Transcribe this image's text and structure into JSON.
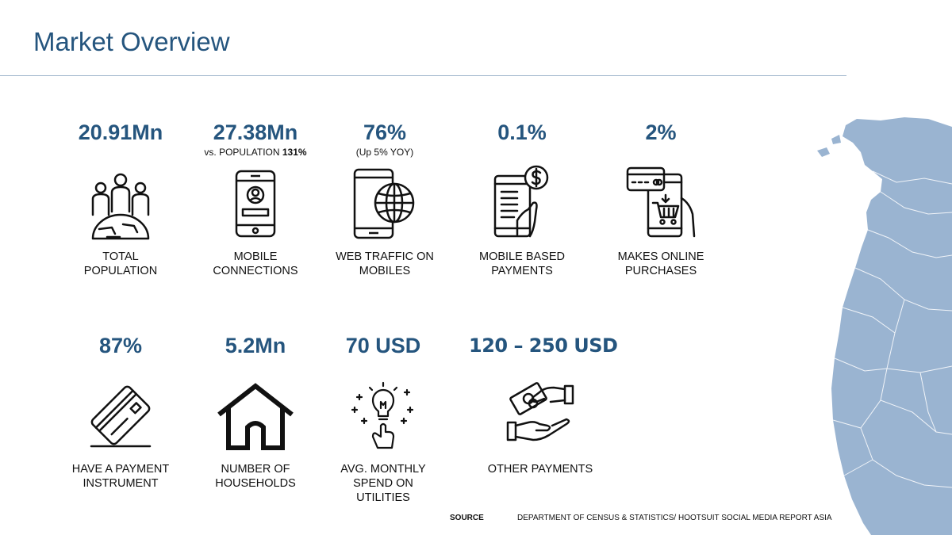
{
  "title": "Market Overview",
  "stats_row1": [
    {
      "value": "20.91Mn",
      "label_l1": "TOTAL",
      "label_l2": "POPULATION",
      "icon": "population-globe-icon"
    },
    {
      "value": "27.38Mn",
      "sub_prefix": "vs. POPULATION ",
      "sub_strong": "131%",
      "label_l1": "MOBILE",
      "label_l2": "CONNECTIONS",
      "icon": "mobile-phone-user-icon"
    },
    {
      "value": "76%",
      "sub": "(Up 5% YOY)",
      "label_l1": "WEB TRAFFIC ON",
      "label_l2": "MOBILES",
      "icon": "mobile-web-globe-icon"
    },
    {
      "value": "0.1%",
      "label_l1": "MOBILE BASED",
      "label_l2": "PAYMENTS",
      "icon": "mobile-payment-dollar-icon"
    },
    {
      "value": "2%",
      "label_l1": "MAKES ONLINE",
      "label_l2": "PURCHASES",
      "icon": "online-shopping-cart-icon"
    }
  ],
  "stats_row2": [
    {
      "value": "87%",
      "label_l1": "HAVE A PAYMENT",
      "label_l2": "INSTRUMENT",
      "icon": "payment-card-icon"
    },
    {
      "value": "5.2Mn",
      "label_l1": "NUMBER OF",
      "label_l2": "HOUSEHOLDS",
      "icon": "house-icon"
    },
    {
      "value": "70 USD",
      "label_l1": "AVG. MONTHLY",
      "label_l2": "SPEND ON",
      "label_l3": "UTILITIES",
      "icon": "utilities-lightbulb-icon"
    },
    {
      "value": "120 – 250 USD",
      "label_l1": "OTHER PAYMENTS",
      "icon": "cash-hand-payment-icon"
    }
  ],
  "source": {
    "key": "SOURCE",
    "value": "DEPARTMENT OF CENSUS & STATISTICS/ HOOTSUIT SOCIAL MEDIA REPORT ASIA"
  },
  "colors": {
    "accent": "#25557e",
    "map": "#9ab4d1",
    "rule": "#9fb5cc"
  }
}
